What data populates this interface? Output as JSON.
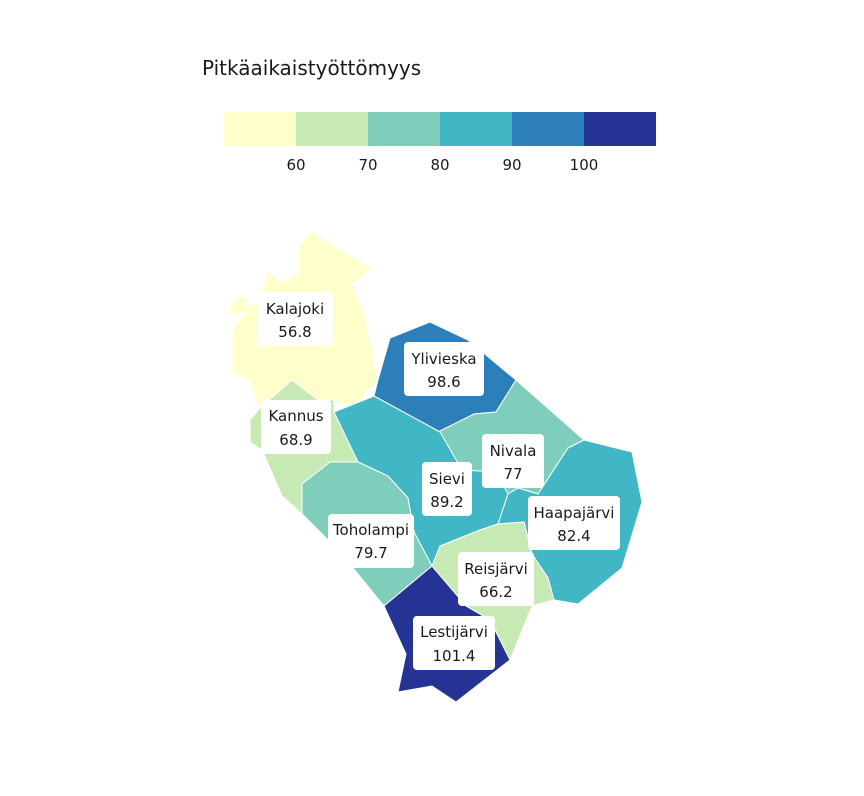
{
  "legend": {
    "title": "Pitkäaikaistyöttömyys",
    "colors": [
      "#ffffcc",
      "#c7e9b4",
      "#7fcdbb",
      "#41b6c4",
      "#2c7fb8",
      "#253494"
    ],
    "ticks": [
      "60",
      "70",
      "80",
      "90",
      "100"
    ]
  },
  "regions": [
    {
      "name": "Kalajoki",
      "value": "56.8",
      "color": "#ffffcc"
    },
    {
      "name": "Kannus",
      "value": "68.9",
      "color": "#c7e9b4"
    },
    {
      "name": "Ylivieska",
      "value": "98.6",
      "color": "#2c7fb8"
    },
    {
      "name": "Nivala",
      "value": "77",
      "color": "#7fcdbb"
    },
    {
      "name": "Sievi",
      "value": "89.2",
      "color": "#41b6c4"
    },
    {
      "name": "Toholampi",
      "value": "79.7",
      "color": "#7fcdbb"
    },
    {
      "name": "Haapajärvi",
      "value": "82.4",
      "color": "#41b6c4"
    },
    {
      "name": "Reisjärvi",
      "value": "66.2",
      "color": "#c7e9b4"
    },
    {
      "name": "Lestijärvi",
      "value": "101.4",
      "color": "#253494"
    }
  ]
}
